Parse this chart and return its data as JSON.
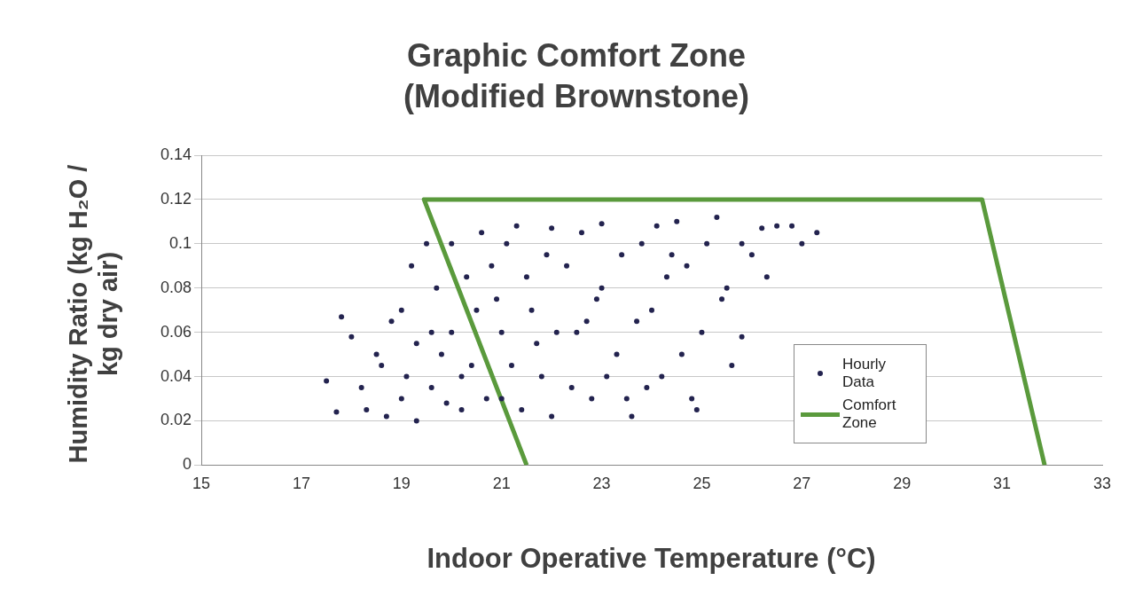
{
  "chart_data": {
    "type": "scatter",
    "title": "Graphic Comfort Zone (Modified Brownstone)",
    "xlabel": "Indoor Operative Temperature (°C)",
    "ylabel": "Humidity Ratio (kg H₂O / kg dry air)",
    "xlim": [
      15,
      33
    ],
    "xticks": [
      15,
      17,
      19,
      21,
      23,
      25,
      27,
      29,
      31,
      33
    ],
    "ylim": [
      0,
      0.14
    ],
    "yticks": [
      0,
      0.02,
      0.04,
      0.06,
      0.08,
      0.1,
      0.12,
      0.14
    ],
    "grid": "y",
    "legend": "bottom right",
    "series": [
      {
        "name": "Hourly Data",
        "color": "#23234f",
        "marker": "circle",
        "x": [
          17.5,
          17.7,
          17.8,
          18.0,
          18.2,
          18.3,
          18.5,
          18.6,
          18.7,
          18.8,
          19.0,
          19.0,
          19.1,
          19.2,
          19.3,
          19.3,
          19.5,
          19.6,
          19.7,
          19.8,
          19.9,
          20.0,
          20.0,
          20.2,
          20.3,
          20.4,
          20.5,
          20.6,
          20.7,
          20.8,
          21.0,
          21.0,
          21.1,
          21.2,
          21.3,
          21.4,
          21.5,
          21.6,
          21.8,
          21.9,
          22.0,
          22.0,
          22.1,
          22.3,
          22.4,
          22.5,
          22.6,
          22.8,
          22.9,
          23.0,
          23.0,
          23.1,
          23.3,
          23.4,
          23.6,
          23.7,
          23.8,
          23.9,
          24.0,
          24.1,
          24.2,
          24.3,
          24.5,
          24.6,
          24.7,
          24.8,
          24.9,
          25.0,
          25.1,
          25.3,
          25.4,
          25.5,
          25.6,
          25.8,
          25.8,
          26.0,
          26.2,
          26.3,
          26.5,
          26.8,
          27.0,
          27.3,
          20.2,
          21.7,
          22.7,
          23.5,
          24.4,
          19.6,
          20.9
        ],
        "values": [
          0.038,
          0.024,
          0.067,
          0.058,
          0.035,
          0.025,
          0.05,
          0.045,
          0.022,
          0.065,
          0.03,
          0.07,
          0.04,
          0.09,
          0.02,
          0.055,
          0.1,
          0.035,
          0.08,
          0.05,
          0.028,
          0.1,
          0.06,
          0.025,
          0.085,
          0.045,
          0.07,
          0.105,
          0.03,
          0.09,
          0.03,
          0.06,
          0.1,
          0.045,
          0.108,
          0.025,
          0.085,
          0.07,
          0.04,
          0.095,
          0.107,
          0.022,
          0.06,
          0.09,
          0.035,
          0.06,
          0.105,
          0.03,
          0.075,
          0.109,
          0.08,
          0.04,
          0.05,
          0.095,
          0.022,
          0.065,
          0.1,
          0.035,
          0.07,
          0.108,
          0.04,
          0.085,
          0.11,
          0.05,
          0.09,
          0.03,
          0.025,
          0.06,
          0.1,
          0.112,
          0.075,
          0.08,
          0.045,
          0.058,
          0.1,
          0.095,
          0.107,
          0.085,
          0.108,
          0.108,
          0.1,
          0.105,
          0.04,
          0.055,
          0.065,
          0.03,
          0.095,
          0.06,
          0.075
        ]
      },
      {
        "name": "Comfort Zone",
        "type": "line",
        "color": "#5a9a3c",
        "marker": "none",
        "x": [
          21.5,
          19.45,
          30.6,
          31.85
        ],
        "values": [
          0,
          0.12,
          0.12,
          0
        ]
      }
    ]
  }
}
